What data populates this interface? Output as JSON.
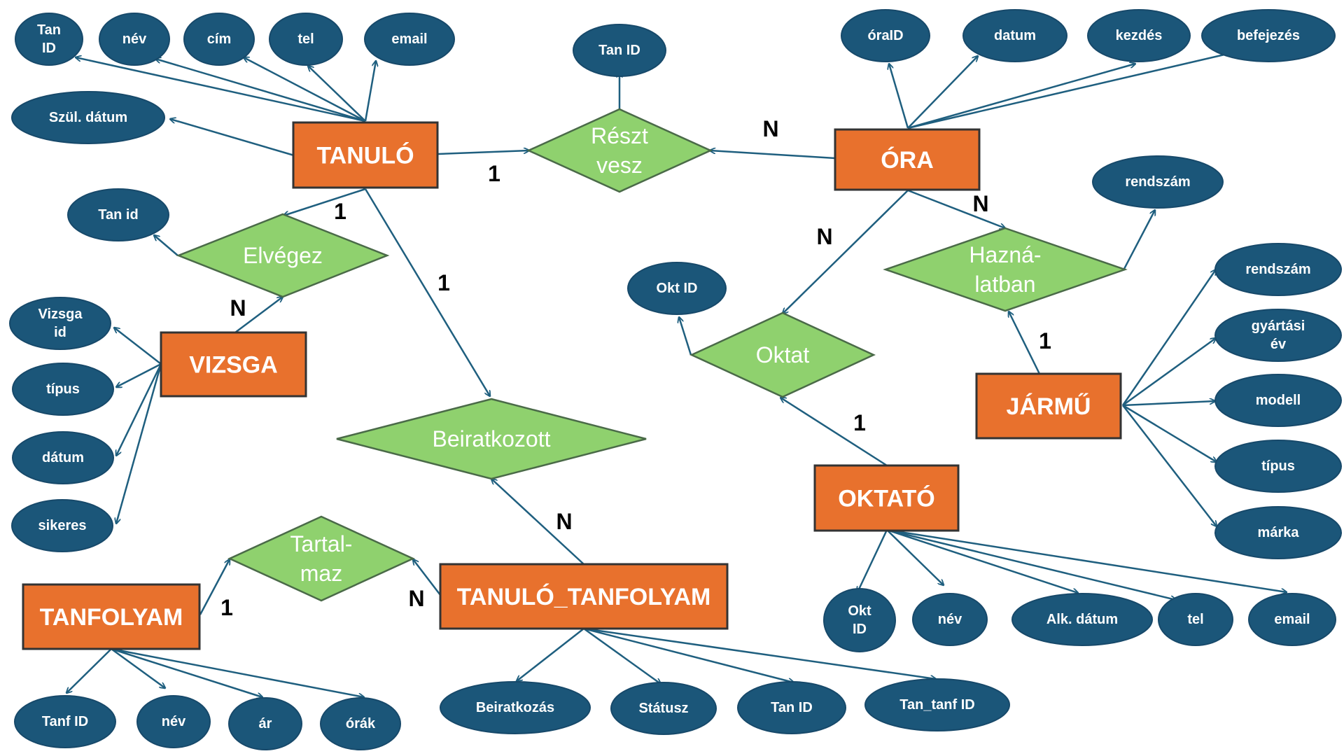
{
  "colors": {
    "entity_fill": "#E8712D",
    "entity_stroke": "#333333",
    "attribute_fill": "#1B5679",
    "attribute_stroke": "#17496A",
    "relationship_fill": "#8FD16E",
    "relationship_stroke": "#4A6A48",
    "connector": "#1F5F7F",
    "cardinality_text": "#000000"
  },
  "entities": {
    "tanulo": "TANULÓ",
    "ora": "ÓRA",
    "vizsga": "VIZSGA",
    "jarmu": "JÁRMŰ",
    "oktato": "OKTATÓ",
    "tanfolyam": "TANFOLYAM",
    "tanulo_tanfolyam": "TANULÓ_TANFOLYAM"
  },
  "relationships": {
    "reszt_vesz": [
      "Részt",
      "vesz"
    ],
    "elvegez": [
      "Elvégez"
    ],
    "hasznalatban": [
      "Hazná-",
      "latban"
    ],
    "oktat": [
      "Oktat"
    ],
    "beiratkozott": [
      "Beiratkozott"
    ],
    "tartalmaz": [
      "Tartal-",
      "maz"
    ]
  },
  "attributes": {
    "tanulo_tan_id": [
      "Tan",
      "ID"
    ],
    "tanulo_nev": [
      "név"
    ],
    "tanulo_cim": [
      "cím"
    ],
    "tanulo_tel": [
      "tel"
    ],
    "tanulo_email": [
      "email"
    ],
    "tanulo_szul_datum": [
      "Szül. dátum"
    ],
    "reszt_vesz_tan_id": [
      "Tan ID"
    ],
    "ora_oraid": [
      "óraID"
    ],
    "ora_datum": [
      "datum"
    ],
    "ora_kezdes": [
      "kezdés"
    ],
    "ora_befejezes": [
      "befejezés"
    ],
    "elvegez_tan_id": [
      "Tan id"
    ],
    "vizsga_id": [
      "Vizsga",
      "id"
    ],
    "vizsga_tipus": [
      "típus"
    ],
    "vizsga_datum": [
      "dátum"
    ],
    "vizsga_sikeres": [
      "sikeres"
    ],
    "hasznalatban_rendszam": [
      "rendszám"
    ],
    "jarmu_rendszam": [
      "rendszám"
    ],
    "jarmu_gyartasi_ev": [
      "gyártási",
      "év"
    ],
    "jarmu_modell": [
      "modell"
    ],
    "jarmu_tipus": [
      "típus"
    ],
    "jarmu_marka": [
      "márka"
    ],
    "oktat_okt_id": [
      "Okt ID"
    ],
    "oktato_okt_id": [
      "Okt",
      "ID"
    ],
    "oktato_nev": [
      "név"
    ],
    "oktato_alk_datum": [
      "Alk. dátum"
    ],
    "oktato_tel": [
      "tel"
    ],
    "oktato_email": [
      "email"
    ],
    "tanfolyam_tanf_id": [
      "Tanf ID"
    ],
    "tanfolyam_nev": [
      "név"
    ],
    "tanfolyam_ar": [
      "ár"
    ],
    "tanfolyam_orak": [
      "órák"
    ],
    "tt_beiratkozas": [
      "Beiratkozás"
    ],
    "tt_statusz": [
      "Státusz"
    ],
    "tt_tan_id": [
      "Tan ID"
    ],
    "tt_tan_tanf_id": [
      "Tan_tanf ID"
    ]
  },
  "cardinalities": {
    "tanulo_resztvesz": "1",
    "ora_resztvesz": "N",
    "tanulo_elvegez": "1",
    "vizsga_elvegez": "N",
    "tanulo_beiratkozott": "1",
    "tt_beiratkozott": "N",
    "ora_oktat": "N",
    "oktato_oktat": "1",
    "ora_hasznalatban": "N",
    "jarmu_hasznalatban": "1",
    "tanfolyam_tartalmaz": "1",
    "tt_tartalmaz": "N"
  }
}
